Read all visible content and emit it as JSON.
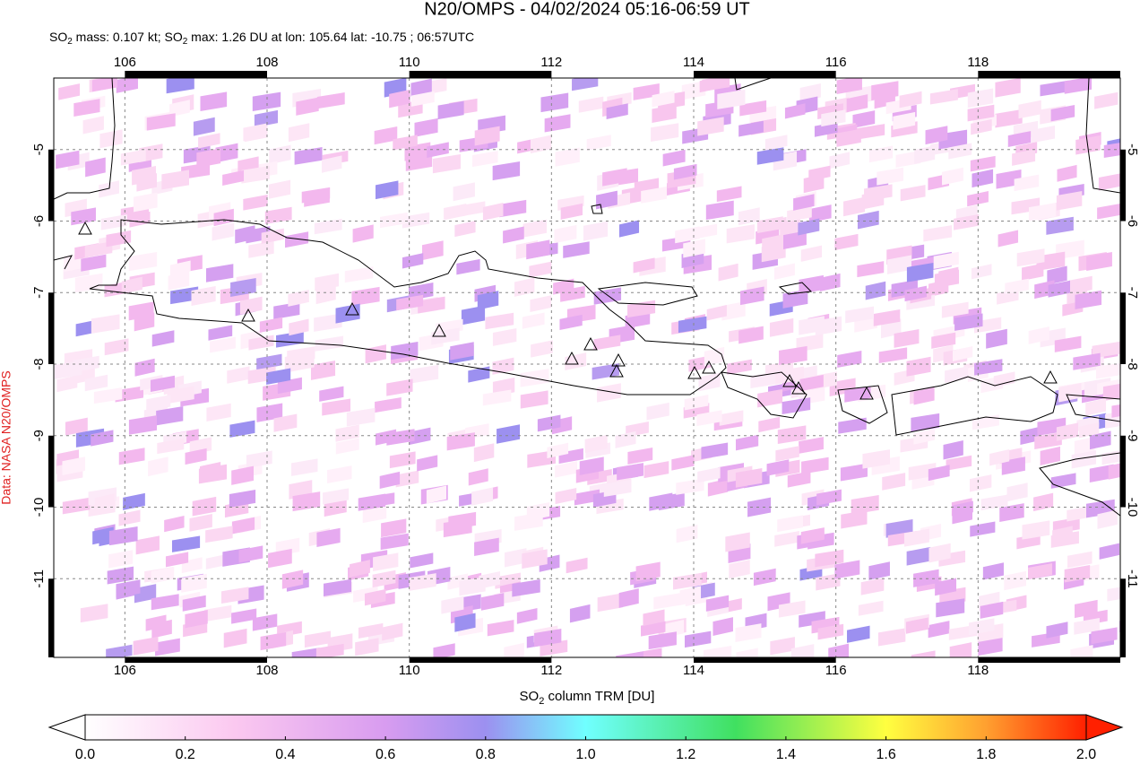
{
  "header": {
    "title": "N20/OMPS - 04/02/2024 05:16-06:59 UT",
    "subtitle": [
      "SO",
      "2",
      " mass: 0.107 kt; SO",
      "2",
      " max: 1.26 DU at lon: 105.64 lat: -10.75 ; 06:57UTC"
    ]
  },
  "credit": "Data: NASA N20/OMPS",
  "map": {
    "xlim": [
      105,
      120
    ],
    "ylim": [
      -12.1,
      -4.0
    ],
    "xticks": [
      106,
      108,
      110,
      112,
      114,
      116,
      118
    ],
    "yticks": [
      -5,
      -6,
      -7,
      -8,
      -9,
      -10,
      -11
    ]
  },
  "colorbar": {
    "label": [
      "SO",
      "2",
      " column TRM [DU]"
    ],
    "range": [
      0,
      2
    ],
    "ticks": [
      {
        "value": 0,
        "label": "0.0"
      },
      {
        "value": 0.2,
        "label": "0.2"
      },
      {
        "value": 0.4,
        "label": "0.4"
      },
      {
        "value": 0.6,
        "label": "0.6"
      },
      {
        "value": 0.8,
        "label": "0.8"
      },
      {
        "value": 1,
        "label": "1.0"
      },
      {
        "value": 1.2,
        "label": "1.2"
      },
      {
        "value": 1.4,
        "label": "1.4"
      },
      {
        "value": 1.6,
        "label": "1.6"
      },
      {
        "value": 1.8,
        "label": "1.8"
      },
      {
        "value": 2,
        "label": "2.0"
      }
    ]
  }
}
